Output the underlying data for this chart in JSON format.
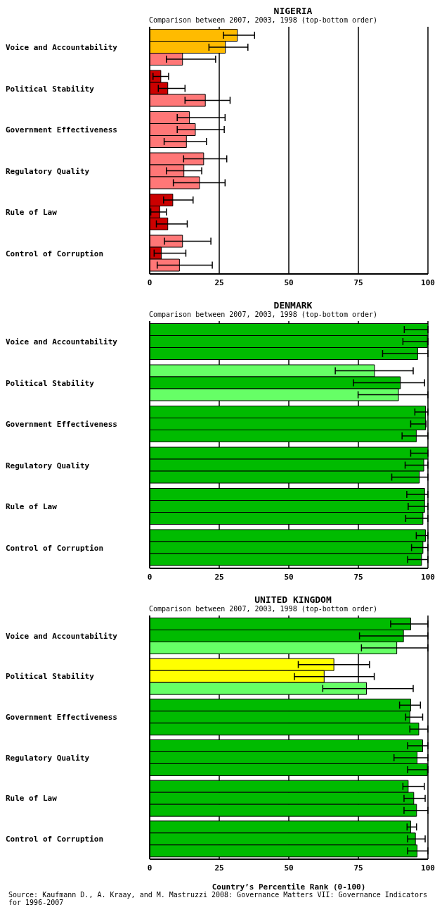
{
  "chart_data": [
    {
      "type": "bar",
      "orientation": "horizontal",
      "title": "NIGERIA",
      "subtitle": "Comparison between 2007, 2003, 1998 (top-bottom order)",
      "categories": [
        "Voice and Accountability",
        "Political Stability",
        "Government Effectiveness",
        "Regulatory Quality",
        "Rule of Law",
        "Control of Corruption"
      ],
      "xlim": [
        0,
        100
      ],
      "xticks": [
        0,
        25,
        50,
        75,
        100
      ],
      "grid": "x",
      "series": [
        {
          "values": [
            31.5,
            4.0,
            14.3,
            19.4,
            8.3,
            11.8
          ],
          "colors": [
            "#ffbb00",
            "#cc0000",
            "#ff7777",
            "#ff7777",
            "#cc0000",
            "#ff7777"
          ],
          "errors": [
            [
              26.5,
              37.7
            ],
            [
              1.2,
              6.8
            ],
            [
              9.9,
              27.1
            ],
            [
              12.2,
              27.7
            ],
            [
              5.0,
              15.6
            ],
            [
              5.3,
              22.0
            ]
          ]
        },
        {
          "values": [
            27.2,
            6.5,
            16.4,
            12.3,
            3.6,
            4.2
          ],
          "colors": [
            "#ffbb00",
            "#cc0000",
            "#ff7777",
            "#ff7777",
            "#cc0000",
            "#cc0000"
          ],
          "errors": [
            [
              21.3,
              35.3
            ],
            [
              3.1,
              12.7
            ],
            [
              9.9,
              26.8
            ],
            [
              6.0,
              18.7
            ],
            [
              0.4,
              6.0
            ],
            [
              1.6,
              13.0
            ]
          ]
        },
        {
          "values": [
            11.8,
            20.0,
            13.2,
            17.9,
            6.5,
            10.7
          ],
          "colors": [
            "#ff7777",
            "#ff7777",
            "#ff7777",
            "#ff7777",
            "#cc0000",
            "#ff7777"
          ],
          "errors": [
            [
              6.0,
              23.7
            ],
            [
              12.7,
              28.9
            ],
            [
              5.2,
              20.4
            ],
            [
              8.5,
              27.1
            ],
            [
              2.4,
              13.5
            ],
            [
              2.7,
              22.5
            ]
          ]
        }
      ]
    },
    {
      "type": "bar",
      "orientation": "horizontal",
      "title": "DENMARK",
      "subtitle": "Comparison between 2007, 2003, 1998 (top-bottom order)",
      "categories": [
        "Voice and Accountability",
        "Political Stability",
        "Government Effectiveness",
        "Regulatory Quality",
        "Rule of Law",
        "Control of Corruption"
      ],
      "xlim": [
        0,
        100
      ],
      "xticks": [
        0,
        25,
        50,
        75,
        100
      ],
      "grid": "x",
      "series": [
        {
          "values": [
            100,
            80.8,
            99.1,
            100,
            98.8,
            99.1
          ],
          "colors": [
            "#00bb00",
            "#66ff66",
            "#00bb00",
            "#00bb00",
            "#00bb00",
            "#00bb00"
          ],
          "errors": [
            [
              91.5,
              100
            ],
            [
              66.7,
              94.7
            ],
            [
              95.3,
              100
            ],
            [
              93.8,
              100
            ],
            [
              92.4,
              100
            ],
            [
              95.8,
              100
            ]
          ]
        },
        {
          "values": [
            99.8,
            90.1,
            99.1,
            98.5,
            98.8,
            98.2
          ],
          "colors": [
            "#00bb00",
            "#00bb00",
            "#00bb00",
            "#00bb00",
            "#00bb00",
            "#00bb00"
          ],
          "errors": [
            [
              91.0,
              100
            ],
            [
              73.2,
              98.8
            ],
            [
              93.8,
              99.3
            ],
            [
              91.8,
              100
            ],
            [
              92.9,
              100
            ],
            [
              94.1,
              100
            ]
          ]
        },
        {
          "values": [
            96.3,
            89.4,
            95.8,
            96.9,
            98.2,
            97.7
          ],
          "colors": [
            "#00bb00",
            "#66ff66",
            "#00bb00",
            "#00bb00",
            "#00bb00",
            "#00bb00"
          ],
          "errors": [
            [
              83.7,
              100
            ],
            [
              74.9,
              100
            ],
            [
              90.7,
              100
            ],
            [
              87.0,
              100
            ],
            [
              92.0,
              100
            ],
            [
              92.7,
              100
            ]
          ]
        }
      ]
    },
    {
      "type": "bar",
      "orientation": "horizontal",
      "title": "UNITED KINGDOM",
      "subtitle": "Comparison between 2007, 2003, 1998 (top-bottom order)",
      "xlabel": "Country’s Percentile Rank (0-100)",
      "categories": [
        "Voice and Accountability",
        "Political Stability",
        "Government Effectiveness",
        "Regulatory Quality",
        "Rule of Law",
        "Control of Corruption"
      ],
      "xlim": [
        0,
        100
      ],
      "xticks": [
        0,
        25,
        50,
        75,
        100
      ],
      "grid": "x",
      "annotations": [
        "Source: Kaufmann D., A. Kraay, and M. Mastruzzi 2008: Governance Matters VII: Governance Indicators for 1996-2007"
      ],
      "series": [
        {
          "values": [
            93.8,
            66.2,
            93.8,
            98.1,
            92.9,
            93.8
          ],
          "colors": [
            "#00bb00",
            "#ffff00",
            "#00bb00",
            "#00bb00",
            "#00bb00",
            "#00bb00"
          ],
          "errors": [
            [
              86.6,
              100
            ],
            [
              53.4,
              79.0
            ],
            [
              89.8,
              97.3
            ],
            [
              92.7,
              100
            ],
            [
              91.0,
              98.7
            ],
            [
              92.5,
              95.9
            ]
          ]
        },
        {
          "values": [
            91.2,
            62.7,
            93.5,
            96.1,
            94.9,
            95.5
          ],
          "colors": [
            "#00bb00",
            "#ffff00",
            "#00bb00",
            "#00bb00",
            "#00bb00",
            "#00bb00"
          ],
          "errors": [
            [
              75.4,
              100
            ],
            [
              52.0,
              80.7
            ],
            [
              92.0,
              98.1
            ],
            [
              87.8,
              100
            ],
            [
              91.4,
              99.0
            ],
            [
              92.7,
              99.0
            ]
          ]
        },
        {
          "values": [
            88.8,
            77.9,
            96.7,
            99.8,
            95.9,
            96.1
          ],
          "colors": [
            "#66ff66",
            "#66ff66",
            "#00bb00",
            "#00bb00",
            "#00bb00",
            "#00bb00"
          ],
          "errors": [
            [
              76.1,
              100
            ],
            [
              62.2,
              94.7
            ],
            [
              93.5,
              100
            ],
            [
              92.7,
              100
            ],
            [
              91.4,
              100
            ],
            [
              92.7,
              100
            ]
          ]
        }
      ]
    }
  ]
}
